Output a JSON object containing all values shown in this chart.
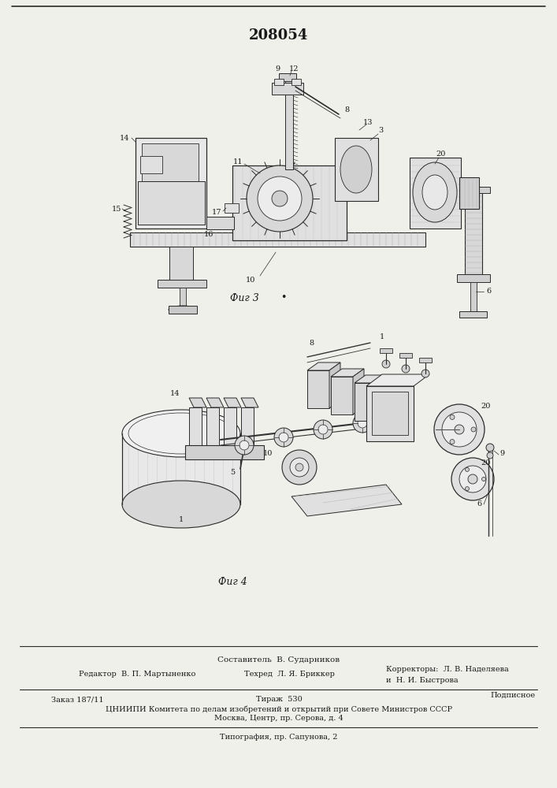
{
  "patent_number": "208054",
  "fig3_label": "Фиг 3",
  "fig4_label": "Фиг 4",
  "footer_line1": "Составитель  В. Сударников",
  "footer_line2_left": "Редактор  В. П. Мартыненко",
  "footer_line2_mid": "Техред  Л. Я. Бриккер",
  "footer_line2_right": "Корректоры:  Л. В. Наделяева",
  "footer_line2_right2": "и  Н. И. Быстрова",
  "footer_line3_left": "Заказ 187/11",
  "footer_line3_mid": "Тираж  530",
  "footer_line3_right": "Подписное",
  "footer_line4": "ЦНИИПИ Комитета по делам изобретений и открытий при Совете Министров СССР",
  "footer_line5": "Москва, Центр, пр. Серова, д. 4",
  "footer_line6": "Типография, пр. Сапунова, 2",
  "bg_color": "#f0f0eb",
  "line_color": "#1a1a1a",
  "draw_color": "#2a2a2a",
  "hatch_color": "#555555"
}
